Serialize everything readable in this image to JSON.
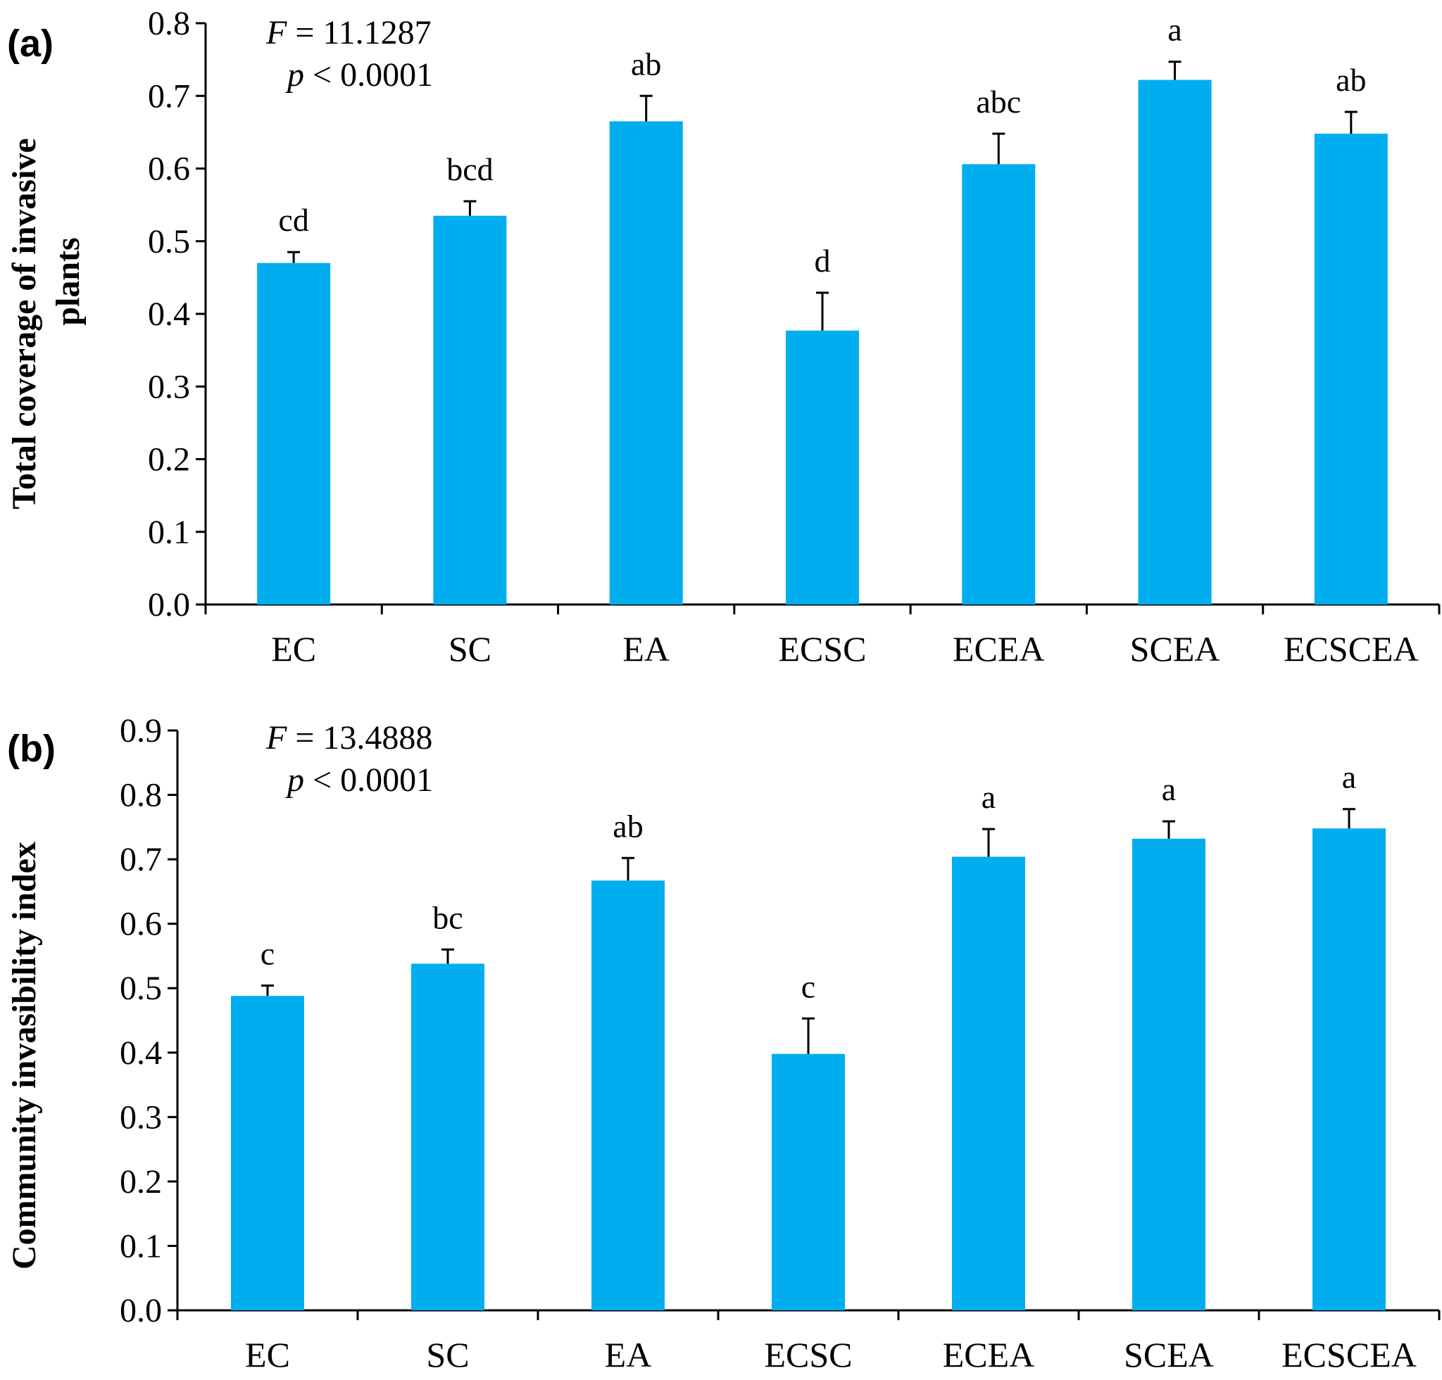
{
  "chart_data": [
    {
      "type": "bar",
      "panel_label": "(a)",
      "ylabel_line1": "Total coverage of invasive",
      "ylabel_line2": "plants",
      "categories": [
        "EC",
        "SC",
        "EA",
        "ECSC",
        "ECEA",
        "SCEA",
        "ECSCEA"
      ],
      "values": [
        0.47,
        0.535,
        0.665,
        0.377,
        0.606,
        0.722,
        0.648
      ],
      "errors": [
        0.015,
        0.02,
        0.035,
        0.052,
        0.042,
        0.025,
        0.03
      ],
      "significance": [
        "cd",
        "bcd",
        "ab",
        "d",
        "abc",
        "a",
        "ab"
      ],
      "stat_f_label": "F",
      "stat_f_value": " = 11.1287",
      "stat_p_label": "p",
      "stat_p_value": " < 0.0001",
      "ylim": [
        0,
        0.8
      ],
      "yticks": [
        "0.0",
        "0.1",
        "0.2",
        "0.3",
        "0.4",
        "0.5",
        "0.6",
        "0.7",
        "0.8"
      ],
      "color": "#00AEEF",
      "grid": false
    },
    {
      "type": "bar",
      "panel_label": "(b)",
      "ylabel_line1": "Community invasibility index",
      "ylabel_line2": "",
      "categories": [
        "EC",
        "SC",
        "EA",
        "ECSC",
        "ECEA",
        "SCEA",
        "ECSCEA"
      ],
      "values": [
        0.488,
        0.538,
        0.667,
        0.398,
        0.704,
        0.732,
        0.748
      ],
      "errors": [
        0.016,
        0.022,
        0.035,
        0.055,
        0.043,
        0.027,
        0.03
      ],
      "significance": [
        "c",
        "bc",
        "ab",
        "c",
        "a",
        "a",
        "a"
      ],
      "stat_f_label": "F",
      "stat_f_value": " = 13.4888",
      "stat_p_label": "p",
      "stat_p_value": " < 0.0001",
      "ylim": [
        0,
        0.9
      ],
      "yticks": [
        "0.0",
        "0.1",
        "0.2",
        "0.3",
        "0.4",
        "0.5",
        "0.6",
        "0.7",
        "0.8",
        "0.9"
      ],
      "color": "#00AEEF",
      "grid": false
    }
  ]
}
